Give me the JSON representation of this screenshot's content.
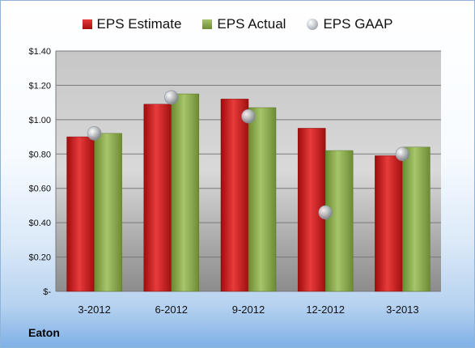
{
  "company": "Eaton",
  "chart_data": {
    "type": "bar",
    "categories": [
      "3-2012",
      "6-2012",
      "9-2012",
      "12-2012",
      "3-2013"
    ],
    "series": [
      {
        "name": "EPS Estimate",
        "type": "bar",
        "color": "#c81a1a",
        "values": [
          0.9,
          1.09,
          1.12,
          0.95,
          0.79
        ]
      },
      {
        "name": "EPS Actual",
        "type": "bar",
        "color": "#8aaa4a",
        "values": [
          0.92,
          1.15,
          1.07,
          0.82,
          0.84
        ]
      },
      {
        "name": "EPS GAAP",
        "type": "scatter",
        "color": "#b8bcc4",
        "values": [
          0.92,
          1.13,
          1.02,
          0.46,
          0.8
        ]
      }
    ],
    "ylim": [
      0,
      1.4
    ],
    "yticks": [
      0,
      0.2,
      0.4,
      0.6,
      0.8,
      1.0,
      1.2,
      1.4
    ],
    "ytick_labels": [
      "$-",
      "$0.20",
      "$0.40",
      "$0.60",
      "$0.80",
      "$1.00",
      "$1.20",
      "$1.40"
    ],
    "grid": true,
    "legend_position": "top"
  }
}
